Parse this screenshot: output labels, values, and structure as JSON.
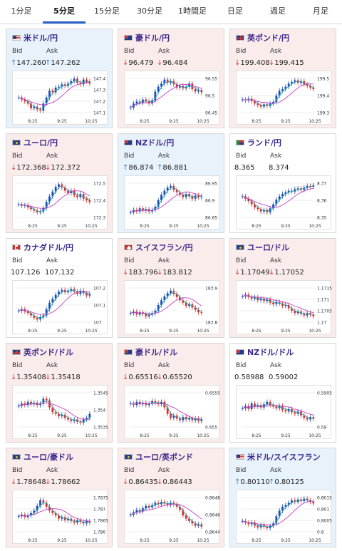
{
  "tabs": [
    {
      "label": "1分足",
      "active": false
    },
    {
      "label": "5分足",
      "active": true
    },
    {
      "label": "15分足",
      "active": false
    },
    {
      "label": "30分足",
      "active": false
    },
    {
      "label": "1時間足",
      "active": false
    },
    {
      "label": "日足",
      "active": false
    },
    {
      "label": "週足",
      "active": false
    },
    {
      "label": "月足",
      "active": false
    }
  ],
  "labels": {
    "bid": "Bid",
    "ask": "Ask"
  },
  "x_ticks": [
    "8:25",
    "9:25",
    "10:25"
  ],
  "colors": {
    "up_candle": "#1a4fb5",
    "down_candle": "#d23232",
    "ma_short": "#2aa8a8",
    "ma_long": "#c43fc4",
    "up_card": "#e8f2fb",
    "down_card": "#fbecec"
  },
  "pairs": [
    {
      "name": "米ドル/円",
      "flag": "us",
      "dir": "up",
      "bid": "147.260",
      "ask": "147.262",
      "yticks": [
        "147.4",
        "147.3",
        "147.2",
        "147.1"
      ],
      "trend": [
        0.45,
        0.4,
        0.35,
        0.3,
        0.18,
        0.22,
        0.15,
        0.12,
        0.3,
        0.45,
        0.62,
        0.58,
        0.7,
        0.72,
        0.78,
        0.74,
        0.8,
        0.86,
        0.92,
        0.82,
        0.78,
        0.9,
        0.85,
        0.8
      ]
    },
    {
      "name": "豪ドル/円",
      "flag": "au",
      "dir": "down",
      "bid": "96.479",
      "ask": "96.484",
      "yticks": [
        "96.55",
        "96.5",
        "96.45"
      ],
      "trend": [
        0.2,
        0.3,
        0.35,
        0.32,
        0.4,
        0.36,
        0.3,
        0.38,
        0.6,
        0.72,
        0.8,
        0.9,
        0.82,
        0.86,
        0.78,
        0.7,
        0.74,
        0.68,
        0.72,
        0.8,
        0.66,
        0.6,
        0.64,
        0.58
      ]
    },
    {
      "name": "英ポンド/円",
      "flag": "uk",
      "dir": "down",
      "bid": "199.408",
      "ask": "199.415",
      "yticks": [
        "199.5",
        "199.4",
        "199.3"
      ],
      "trend": [
        0.4,
        0.38,
        0.42,
        0.36,
        0.3,
        0.26,
        0.22,
        0.28,
        0.24,
        0.3,
        0.34,
        0.5,
        0.62,
        0.66,
        0.72,
        0.8,
        0.84,
        0.88,
        0.82,
        0.86,
        0.78,
        0.74,
        0.7,
        0.66
      ]
    },
    {
      "name": "ユーロ/円",
      "flag": "eu",
      "dir": "down",
      "bid": "172.368",
      "ask": "172.372",
      "yticks": [
        "172.5",
        "172.4",
        "172.3"
      ],
      "trend": [
        0.4,
        0.36,
        0.38,
        0.32,
        0.28,
        0.24,
        0.2,
        0.22,
        0.3,
        0.46,
        0.6,
        0.72,
        0.84,
        0.9,
        0.82,
        0.74,
        0.68,
        0.74,
        0.62,
        0.58,
        0.66,
        0.54,
        0.5,
        0.46
      ]
    },
    {
      "name": "NZドル/円",
      "flag": "nz",
      "dir": "up",
      "bid": "86.874",
      "ask": "86.881",
      "yticks": [
        "86.95",
        "86.9",
        "86.85"
      ],
      "trend": [
        0.2,
        0.26,
        0.22,
        0.3,
        0.24,
        0.28,
        0.22,
        0.26,
        0.34,
        0.5,
        0.64,
        0.74,
        0.82,
        0.86,
        0.76,
        0.7,
        0.64,
        0.58,
        0.66,
        0.6,
        0.54,
        0.62,
        0.58,
        0.6
      ]
    },
    {
      "name": "ランド/円",
      "flag": "za",
      "dir": "flat",
      "bid": "8.365",
      "ask": "8.374",
      "yticks": [
        "8.37",
        "8.36",
        "8.35"
      ],
      "trend": [
        0.6,
        0.54,
        0.48,
        0.4,
        0.32,
        0.28,
        0.22,
        0.26,
        0.2,
        0.3,
        0.4,
        0.52,
        0.6,
        0.66,
        0.7,
        0.74,
        0.72,
        0.78,
        0.8,
        0.76,
        0.82,
        0.86,
        0.84,
        0.88
      ]
    },
    {
      "name": "カナダドル/円",
      "flag": "ca",
      "dir": "flat",
      "bid": "107.126",
      "ask": "107.132",
      "yticks": [
        "107.2",
        "107.1",
        "107"
      ],
      "trend": [
        0.36,
        0.4,
        0.34,
        0.3,
        0.24,
        0.18,
        0.14,
        0.2,
        0.24,
        0.4,
        0.56,
        0.66,
        0.76,
        0.84,
        0.88,
        0.82,
        0.86,
        0.9,
        0.84,
        0.78,
        0.86,
        0.8,
        0.74,
        0.78
      ]
    },
    {
      "name": "スイスフラン/円",
      "flag": "ch",
      "dir": "down",
      "bid": "183.796",
      "ask": "183.812",
      "yticks": [
        "183.9",
        "183.8"
      ],
      "trend": [
        0.3,
        0.34,
        0.26,
        0.32,
        0.28,
        0.22,
        0.26,
        0.3,
        0.36,
        0.5,
        0.62,
        0.72,
        0.8,
        0.86,
        0.78,
        0.7,
        0.62,
        0.56,
        0.48,
        0.52,
        0.44,
        0.38,
        0.32,
        0.3
      ]
    },
    {
      "name": "ユーロ/ドル",
      "flag": "eu",
      "dir": "down",
      "bid": "1.17049",
      "ask": "1.17052",
      "yticks": [
        "1.1715",
        "1.171",
        "1.1705",
        "1.17"
      ],
      "trend": [
        0.72,
        0.76,
        0.7,
        0.66,
        0.7,
        0.62,
        0.66,
        0.6,
        0.64,
        0.56,
        0.52,
        0.58,
        0.54,
        0.48,
        0.5,
        0.42,
        0.36,
        0.3,
        0.34,
        0.28,
        0.24,
        0.3,
        0.26,
        0.22
      ]
    },
    {
      "name": "英ポンド/ドル",
      "flag": "uk",
      "dir": "down",
      "bid": "1.35408",
      "ask": "1.35418",
      "yticks": [
        "1.3545",
        "1.354",
        "1.3535"
      ],
      "trend": [
        0.6,
        0.66,
        0.62,
        0.7,
        0.64,
        0.68,
        0.62,
        0.66,
        0.78,
        0.74,
        0.56,
        0.44,
        0.4,
        0.34,
        0.38,
        0.3,
        0.26,
        0.22,
        0.26,
        0.2,
        0.18,
        0.26,
        0.3,
        0.4
      ]
    },
    {
      "name": "豪ドル/ドル",
      "flag": "au",
      "dir": "down",
      "bid": "0.65516",
      "ask": "0.65520",
      "yticks": [
        "0.6555",
        "0.655"
      ],
      "trend": [
        0.66,
        0.62,
        0.7,
        0.64,
        0.68,
        0.62,
        0.66,
        0.72,
        0.68,
        0.64,
        0.7,
        0.56,
        0.4,
        0.3,
        0.36,
        0.28,
        0.24,
        0.32,
        0.26,
        0.3,
        0.24,
        0.28,
        0.22,
        0.26
      ]
    },
    {
      "name": "NZドル/ドル",
      "flag": "nz",
      "dir": "flat",
      "bid": "0.58988",
      "ask": "0.59002",
      "yticks": [
        "0.5905",
        "0.59"
      ],
      "trend": [
        0.54,
        0.6,
        0.52,
        0.66,
        0.58,
        0.62,
        0.56,
        0.64,
        0.7,
        0.62,
        0.58,
        0.54,
        0.6,
        0.5,
        0.46,
        0.52,
        0.44,
        0.4,
        0.46,
        0.36,
        0.3,
        0.26,
        0.32,
        0.28
      ]
    },
    {
      "name": "ユーロ/豪ドル",
      "flag": "eu",
      "dir": "down",
      "bid": "1.78648",
      "ask": "1.78662",
      "yticks": [
        "1.7875",
        "1.787",
        "1.7865",
        "1.786"
      ],
      "trend": [
        0.46,
        0.5,
        0.44,
        0.48,
        0.54,
        0.6,
        0.72,
        0.86,
        0.8,
        0.7,
        0.6,
        0.54,
        0.48,
        0.4,
        0.44,
        0.36,
        0.4,
        0.34,
        0.3,
        0.36,
        0.32,
        0.28,
        0.34,
        0.3
      ]
    },
    {
      "name": "ユーロ/英ポンド",
      "flag": "eu",
      "dir": "down",
      "bid": "0.86435",
      "ask": "0.86443",
      "yticks": [
        "0.8648",
        "0.8646",
        "0.8644"
      ],
      "trend": [
        0.5,
        0.56,
        0.62,
        0.58,
        0.66,
        0.72,
        0.68,
        0.74,
        0.8,
        0.76,
        0.82,
        0.78,
        0.74,
        0.8,
        0.76,
        0.7,
        0.62,
        0.48,
        0.4,
        0.34,
        0.28,
        0.22,
        0.26,
        0.2
      ]
    },
    {
      "name": "米ドル/スイスフラン",
      "flag": "us",
      "dir": "up",
      "bid": "0.80110",
      "ask": "0.80125",
      "yticks": [
        "0.8015",
        "0.801",
        "0.8005",
        "0.8"
      ],
      "trend": [
        0.34,
        0.3,
        0.26,
        0.3,
        0.22,
        0.18,
        0.24,
        0.2,
        0.16,
        0.22,
        0.28,
        0.46,
        0.6,
        0.7,
        0.74,
        0.8,
        0.86,
        0.82,
        0.88,
        0.84,
        0.9,
        0.86,
        0.82,
        0.78
      ]
    }
  ]
}
